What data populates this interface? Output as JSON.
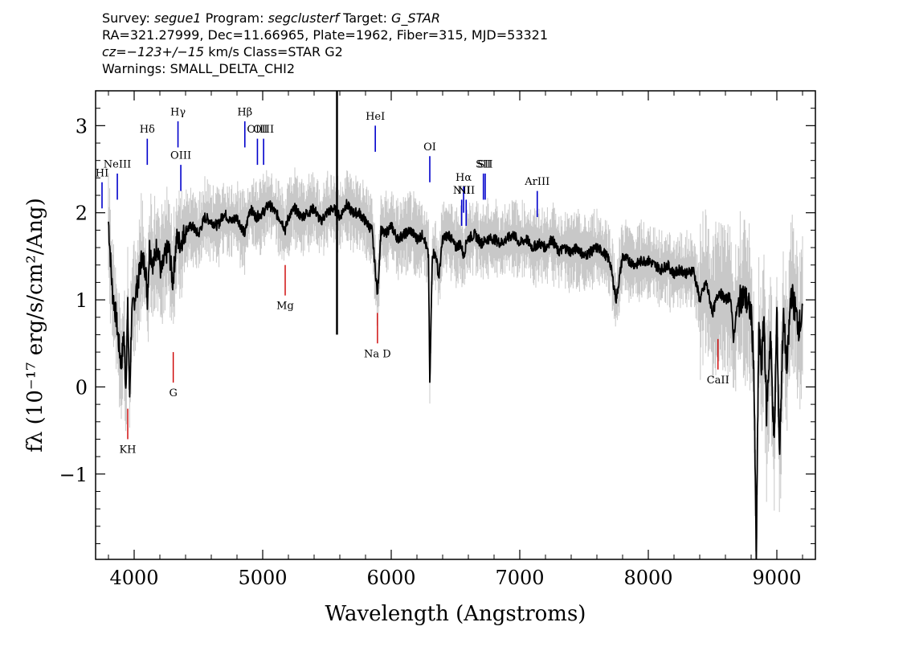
{
  "header": {
    "survey_label": "Survey:",
    "survey": "segue1",
    "program_label": "Program:",
    "program": "segclusterf",
    "target_label": "Target:",
    "target": "G_STAR",
    "line2": "RA=321.27999, Dec=11.66965, Plate=1962, Fiber=315, MJD=53321",
    "cz": "cz=−123+/−15",
    "cz_unit": "km/s Class=STAR G2",
    "warnings": "Warnings: SMALL_DELTA_CHI2"
  },
  "chart_data": {
    "type": "line",
    "xlabel": "Wavelength (Angstroms)",
    "ylabel": "fλ (10⁻¹⁷ erg/s/cm²/Ang)",
    "xlim": [
      3700,
      9300
    ],
    "ylim": [
      -1.98,
      3.4
    ],
    "x_ticks": [
      4000,
      5000,
      6000,
      7000,
      8000,
      9000
    ],
    "x_tick_labels": [
      "4000",
      "5000",
      "6000",
      "7000",
      "8000",
      "9000"
    ],
    "y_ticks": [
      -1,
      0,
      1,
      2,
      3
    ],
    "y_tick_labels": [
      "−1",
      "0",
      "1",
      "2",
      "3"
    ],
    "grid": false,
    "colors": {
      "spectrum": "#000000",
      "error": "#c8c8c8",
      "emission": "#0000cc",
      "absorption": "#cc0000"
    },
    "series": [
      {
        "x": [
          3800,
          3830,
          3860,
          3880,
          3900,
          3920,
          3935,
          3950,
          3965,
          3980,
          4000,
          4030,
          4060,
          4090,
          4102,
          4120,
          4150,
          4180,
          4210,
          4240,
          4270,
          4300,
          4330,
          4360,
          4400,
          4450,
          4500,
          4550,
          4600,
          4650,
          4700,
          4750,
          4800,
          4861,
          4900,
          4950,
          5000,
          5050,
          5100,
          5150,
          5175,
          5200,
          5250,
          5300,
          5350,
          5400,
          5450,
          5500,
          5550,
          5580,
          5600,
          5650,
          5700,
          5750,
          5800,
          5850,
          5893,
          5920,
          5950,
          6000,
          6050,
          6100,
          6150,
          6200,
          6250,
          6290,
          6300,
          6320,
          6350,
          6370,
          6400,
          6450,
          6500,
          6540,
          6563,
          6590,
          6650,
          6700,
          6750,
          6800,
          6850,
          6900,
          6950,
          7000,
          7050,
          7100,
          7150,
          7200,
          7250,
          7300,
          7350,
          7400,
          7450,
          7500,
          7550,
          7600,
          7650,
          7700,
          7750,
          7800,
          7850,
          7900,
          7950,
          8000,
          8050,
          8100,
          8150,
          8200,
          8250,
          8300,
          8350,
          8400,
          8450,
          8500,
          8550,
          8600,
          8640,
          8662,
          8690,
          8730,
          8760,
          8800,
          8820,
          8840,
          8860,
          8880,
          8900,
          8920,
          8950,
          8980,
          9000,
          9020,
          9050,
          9080,
          9110,
          9140,
          9170,
          9200
        ],
        "y": [
          1.9,
          1.1,
          0.8,
          0.5,
          0.25,
          0.6,
          0.0,
          0.9,
          -0.1,
          0.8,
          1.0,
          1.2,
          1.5,
          1.35,
          1.0,
          1.6,
          1.4,
          1.65,
          1.3,
          1.5,
          1.6,
          1.2,
          1.7,
          1.65,
          1.8,
          1.85,
          1.75,
          1.95,
          1.9,
          1.85,
          2.0,
          1.9,
          1.95,
          1.75,
          2.05,
          1.95,
          2.0,
          2.1,
          2.0,
          1.9,
          1.8,
          1.95,
          2.05,
          1.95,
          2.0,
          2.05,
          1.9,
          2.0,
          2.05,
          2.0,
          1.95,
          2.1,
          2.0,
          2.0,
          1.9,
          1.8,
          1.05,
          1.8,
          1.75,
          1.85,
          1.7,
          1.75,
          1.8,
          1.7,
          1.75,
          1.5,
          0.0,
          1.55,
          1.5,
          1.25,
          1.7,
          1.75,
          1.6,
          1.65,
          1.5,
          1.7,
          1.75,
          1.65,
          1.7,
          1.7,
          1.65,
          1.7,
          1.75,
          1.65,
          1.7,
          1.6,
          1.65,
          1.6,
          1.7,
          1.55,
          1.6,
          1.55,
          1.6,
          1.5,
          1.55,
          1.6,
          1.55,
          1.45,
          1.0,
          1.5,
          1.45,
          1.4,
          1.45,
          1.45,
          1.4,
          1.35,
          1.4,
          1.3,
          1.35,
          1.3,
          1.35,
          1.0,
          1.2,
          0.85,
          1.1,
          1.0,
          1.05,
          0.55,
          0.9,
          1.05,
          1.0,
          0.85,
          0.3,
          -1.98,
          0.7,
          0.2,
          0.8,
          -0.3,
          0.6,
          -0.7,
          0.9,
          -0.8,
          0.8,
          0.2,
          1.1,
          0.9,
          0.7,
          0.8
        ]
      }
    ],
    "spikes": [
      {
        "x": 5578,
        "y_top": 3.4,
        "y_bottom": 0.6
      }
    ],
    "emission_lines": [
      {
        "label": "HI",
        "x": 3750
      },
      {
        "label": "NeIII",
        "x": 3869
      },
      {
        "label": "Hδ",
        "x": 4102
      },
      {
        "label": "Hγ",
        "x": 4341
      },
      {
        "label": "OIII",
        "x": 4363
      },
      {
        "label": "Hβ",
        "x": 4861
      },
      {
        "label": "OIII",
        "x": 4959
      },
      {
        "label": "OIII",
        "x": 5007
      },
      {
        "label": "HeI",
        "x": 5876
      },
      {
        "label": "OI",
        "x": 6300
      },
      {
        "label": "NII",
        "x": 6548
      },
      {
        "label": "Hα",
        "x": 6563
      },
      {
        "label": "NII",
        "x": 6583
      },
      {
        "label": "SII",
        "x": 6717
      },
      {
        "label": "SII",
        "x": 6731
      },
      {
        "label": "ArIII",
        "x": 7136
      }
    ],
    "absorption_lines": [
      {
        "label": "KH",
        "x": 3950
      },
      {
        "label": "G",
        "x": 4304
      },
      {
        "label": "Mg",
        "x": 5175
      },
      {
        "label": "Na D",
        "x": 5893
      },
      {
        "label": "CaII",
        "x": 8542
      }
    ]
  }
}
